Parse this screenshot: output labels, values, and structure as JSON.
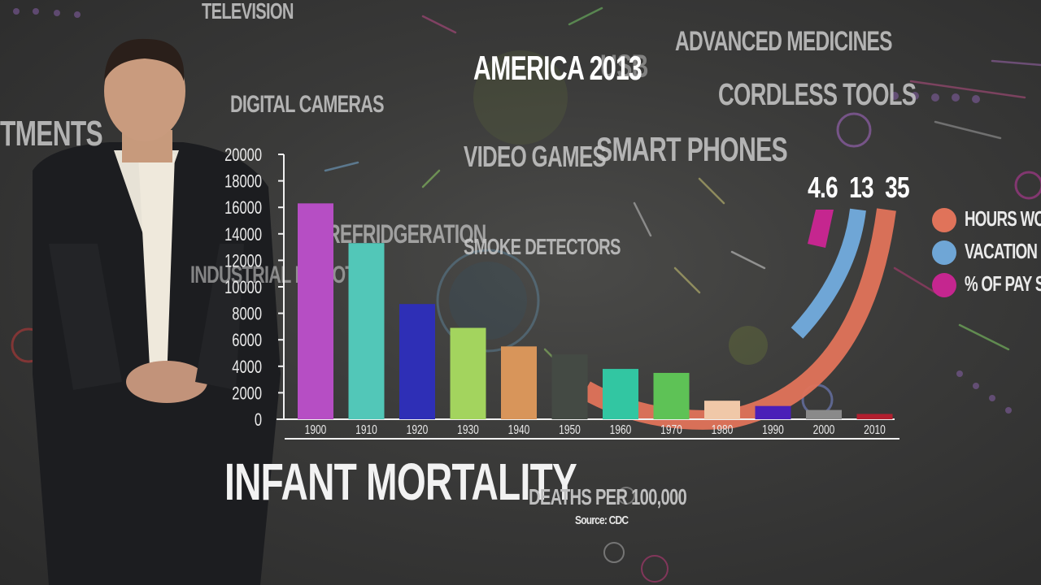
{
  "header": {
    "title": "AMERICA 2013"
  },
  "floating_labels": [
    {
      "id": "television",
      "text": "TELEVISION"
    },
    {
      "id": "usb",
      "text": "USB"
    },
    {
      "id": "advanced-medicines",
      "text": "ADVANCED MEDICINES"
    },
    {
      "id": "cordless-tools",
      "text": "CORDLESS TOOLS"
    },
    {
      "id": "digital-cameras",
      "text": "DIGITAL CAMERAS"
    },
    {
      "id": "investments",
      "text": "TMENTS"
    },
    {
      "id": "video-games",
      "text": "VIDEO GAMES"
    },
    {
      "id": "smart-phones",
      "text": "SMART PHONES"
    },
    {
      "id": "refrigeration",
      "text": "REFRIDGERATION"
    },
    {
      "id": "smoke-detectors",
      "text": "SMOKE DETECTORS"
    },
    {
      "id": "industrial-robots",
      "text": "INDUSTRIAL ROBOTS"
    }
  ],
  "stats": {
    "values": [
      "4.6",
      "13",
      "35"
    ]
  },
  "legend": [
    {
      "label": "HOURS WORK",
      "color": "#e0735a"
    },
    {
      "label": "VACATION DA",
      "color": "#6fa6d6"
    },
    {
      "label": "% OF PAY SP",
      "color": "#c5268f"
    }
  ],
  "chart_data": {
    "type": "bar",
    "title": "INFANT MORTALITY",
    "ylabel": "DEATHS PER 100,000",
    "source": "Source: CDC",
    "categories": [
      "1900",
      "1910",
      "1920",
      "1930",
      "1940",
      "1950",
      "1960",
      "1970",
      "1980",
      "1990",
      "2000",
      "2010"
    ],
    "values": [
      16300,
      13300,
      8700,
      6900,
      5500,
      4900,
      3800,
      3500,
      1400,
      1000,
      700,
      400
    ],
    "colors": [
      "#b64ec4",
      "#52c7b8",
      "#2e2fb6",
      "#a3d45e",
      "#d8955a",
      "#444a44",
      "#32c6a2",
      "#5ec256",
      "#f0c8a8",
      "#4a1fb8",
      "#8a8a8a",
      "#b21f2f"
    ],
    "yticks": [
      "0",
      "2000",
      "4000",
      "6000",
      "8000",
      "10000",
      "12000",
      "14000",
      "16000",
      "18000",
      "20000"
    ],
    "ylim": [
      0,
      20000
    ]
  }
}
